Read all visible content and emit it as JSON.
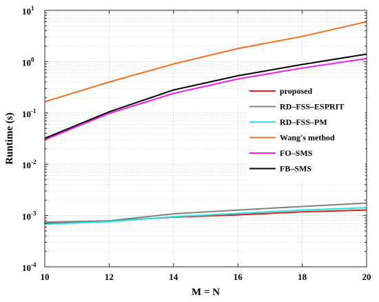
{
  "chart_data": {
    "type": "line",
    "xlabel": "M = N",
    "ylabel": "Runtime (s)",
    "x": [
      10,
      12,
      14,
      16,
      18,
      20
    ],
    "xlim": [
      10,
      20
    ],
    "ylim": [
      0.0001,
      10
    ],
    "y_scale": "log",
    "grid": true,
    "legend_position": "right",
    "x_ticks": [
      "10",
      "12",
      "14",
      "16",
      "18",
      "20"
    ],
    "y_ticks": [
      {
        "base": "10",
        "exp": "-4",
        "value": 0.0001
      },
      {
        "base": "10",
        "exp": "-3",
        "value": 0.001
      },
      {
        "base": "10",
        "exp": "-2",
        "value": 0.01
      },
      {
        "base": "10",
        "exp": "-1",
        "value": 0.1
      },
      {
        "base": "10",
        "exp": "0",
        "value": 1
      },
      {
        "base": "10",
        "exp": "1",
        "value": 10
      }
    ],
    "series": [
      {
        "name": "proposed",
        "color": "#e8141c",
        "values": [
          0.00072,
          0.00078,
          0.00093,
          0.00103,
          0.00118,
          0.00128
        ]
      },
      {
        "name": "RD–FSS–ESPRIT",
        "color": "#808080",
        "values": [
          0.00074,
          0.00079,
          0.00108,
          0.00128,
          0.0015,
          0.00175
        ]
      },
      {
        "name": "RD–FSS–PM",
        "color": "#1ee6e6",
        "values": [
          0.00068,
          0.00076,
          0.00095,
          0.0011,
          0.00128,
          0.00142
        ]
      },
      {
        "name": "Wang's method",
        "color": "#f07020",
        "values": [
          0.165,
          0.4,
          0.9,
          1.8,
          3.1,
          6.0
        ]
      },
      {
        "name": "FO–SMS",
        "color": "#f01cf0",
        "values": [
          0.03,
          0.098,
          0.24,
          0.46,
          0.75,
          1.15
        ]
      },
      {
        "name": "FB–SMS",
        "color": "#000000",
        "values": [
          0.032,
          0.105,
          0.28,
          0.53,
          0.88,
          1.4
        ]
      }
    ]
  }
}
